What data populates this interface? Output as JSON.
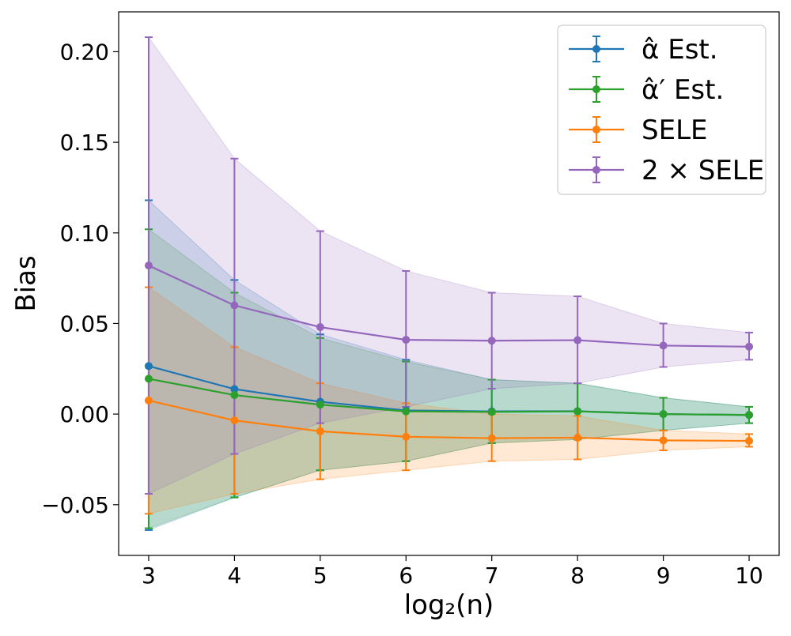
{
  "chart_data": {
    "type": "line",
    "title": "",
    "xlabel": "log₂(n)",
    "ylabel": "Bias",
    "x": [
      3,
      4,
      5,
      6,
      7,
      8,
      9,
      10
    ],
    "xlim": [
      2.65,
      10.35
    ],
    "ylim": [
      -0.078,
      0.222
    ],
    "xticks": [
      "3",
      "4",
      "5",
      "6",
      "7",
      "8",
      "9",
      "10"
    ],
    "yticks": [
      {
        "value": 0.2,
        "label": "0.20"
      },
      {
        "value": 0.15,
        "label": "0.15"
      },
      {
        "value": 0.1,
        "label": "0.10"
      },
      {
        "value": 0.05,
        "label": "0.05"
      },
      {
        "value": 0.0,
        "label": "0.00"
      },
      {
        "value": -0.05,
        "label": "−0.05"
      }
    ],
    "grid": false,
    "legend_position": "top-right",
    "series": [
      {
        "name": "α̂ Est.",
        "color": "#1f77b4",
        "mean": [
          0.0265,
          0.0138,
          0.0068,
          0.002,
          0.0015,
          0.0016,
          0.0,
          -0.0005
        ],
        "lower": [
          -0.064,
          -0.046,
          -0.031,
          -0.026,
          -0.016,
          -0.014,
          -0.009,
          -0.005
        ],
        "upper": [
          0.118,
          0.074,
          0.044,
          0.03,
          0.019,
          0.017,
          0.009,
          0.004
        ]
      },
      {
        "name": "α̂′ Est.",
        "color": "#2ca02c",
        "mean": [
          0.0195,
          0.0105,
          0.0052,
          0.0015,
          0.0012,
          0.0015,
          0.0,
          -0.0005
        ],
        "lower": [
          -0.063,
          -0.046,
          -0.031,
          -0.026,
          -0.016,
          -0.014,
          -0.009,
          -0.005
        ],
        "upper": [
          0.102,
          0.067,
          0.042,
          0.029,
          0.019,
          0.017,
          0.009,
          0.004
        ]
      },
      {
        "name": "SELE",
        "color": "#ff7f0e",
        "mean": [
          0.0075,
          -0.0035,
          -0.0095,
          -0.0125,
          -0.0133,
          -0.013,
          -0.0145,
          -0.0148
        ],
        "lower": [
          -0.055,
          -0.044,
          -0.036,
          -0.031,
          -0.026,
          -0.025,
          -0.02,
          -0.018
        ],
        "upper": [
          0.07,
          0.037,
          0.017,
          0.006,
          0.0,
          -0.001,
          -0.009,
          -0.011
        ]
      },
      {
        "name": "2 × SELE",
        "color": "#9467bd",
        "mean": [
          0.082,
          0.06,
          0.048,
          0.041,
          0.0405,
          0.0408,
          0.0378,
          0.0372
        ],
        "lower": [
          -0.044,
          -0.022,
          -0.005,
          0.004,
          0.014,
          0.017,
          0.026,
          0.03
        ],
        "upper": [
          0.208,
          0.141,
          0.101,
          0.079,
          0.067,
          0.065,
          0.05,
          0.045
        ]
      }
    ]
  }
}
